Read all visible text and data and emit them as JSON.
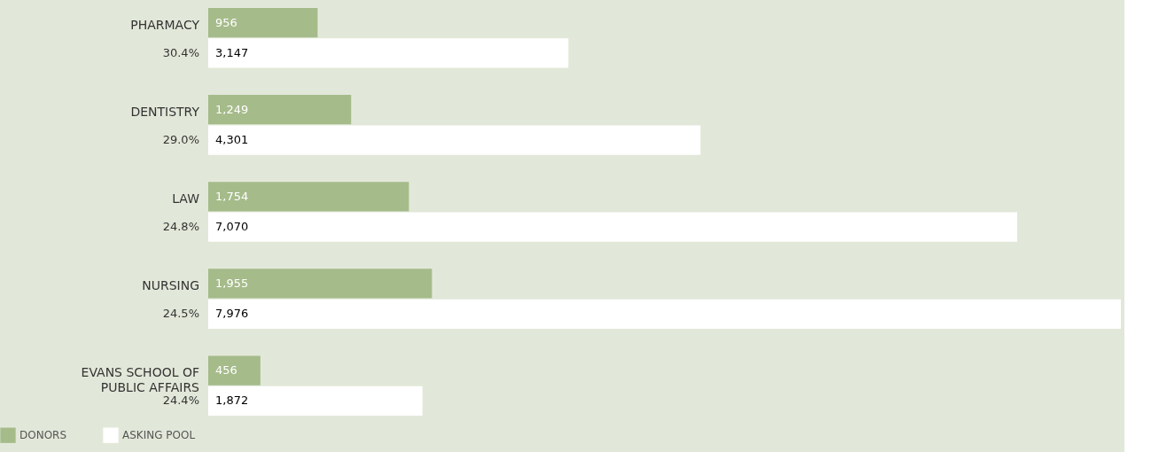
{
  "chart_data": {
    "type": "bar",
    "orientation": "horizontal",
    "legend": "bottom left",
    "categories": [
      "PHARMACY",
      "DENTISTRY",
      "LAW",
      "NURSING",
      "EVANS SCHOOL OF PUBLIC AFFAIRS"
    ],
    "series": [
      {
        "name": "DONORS",
        "color": "#a5bb8a",
        "values": [
          956,
          1249,
          1754,
          1955,
          456
        ],
        "value_labels": [
          "956",
          "1,249",
          "1,754",
          "1,955",
          "456"
        ]
      },
      {
        "name": "ASKING POOL",
        "color": "#ffffff",
        "values": [
          3147,
          4301,
          7070,
          7976,
          1872
        ],
        "value_labels": [
          "3,147",
          "4,301",
          "7,070",
          "7,976",
          "1,872"
        ]
      }
    ],
    "annotations": [
      "30.4%",
      "29.0%",
      "24.8%",
      "24.5%",
      "24.4%"
    ]
  }
}
